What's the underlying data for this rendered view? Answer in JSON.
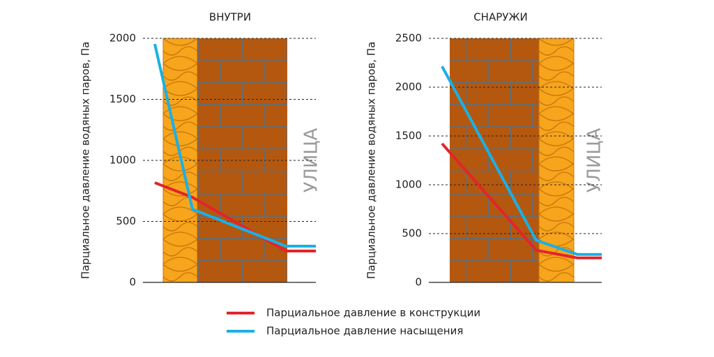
{
  "chart_data": [
    {
      "type": "line",
      "title": "ВНУТРИ",
      "y_label": "Парциальное давление водяных паров, Па",
      "annotation": "УЛИЦА",
      "categories": [
        null,
        null,
        null,
        null
      ],
      "series": [
        {
          "name": "Парциальное давление в конструкции",
          "color": "#e3242b",
          "values": [
            817,
            697,
            257,
            257
          ]
        },
        {
          "name": "Парциальное давление насыщения",
          "color": "#1ab0e6",
          "values": [
            1954,
            600,
            297,
            297
          ]
        }
      ],
      "ylim": [
        0,
        2000
      ],
      "yticks": [
        0,
        500,
        1000,
        1500,
        2000
      ],
      "grid": true
    },
    {
      "type": "line",
      "title": "СНАРУЖИ",
      "y_label": "Парциальное давление водяных паров, Па",
      "annotation": "УЛИЦА",
      "categories": [
        null,
        null,
        null,
        null
      ],
      "series": [
        {
          "color": "#e3242b",
          "values": [
            1422,
            330,
            251,
            251
          ]
        },
        {
          "color": "#1ab0e6",
          "values": [
            2213,
            431,
            287,
            287
          ]
        }
      ],
      "ylim": [
        0,
        2500
      ],
      "yticks": [
        0,
        500,
        1000,
        1500,
        2000,
        2500
      ],
      "grid": true
    }
  ]
}
